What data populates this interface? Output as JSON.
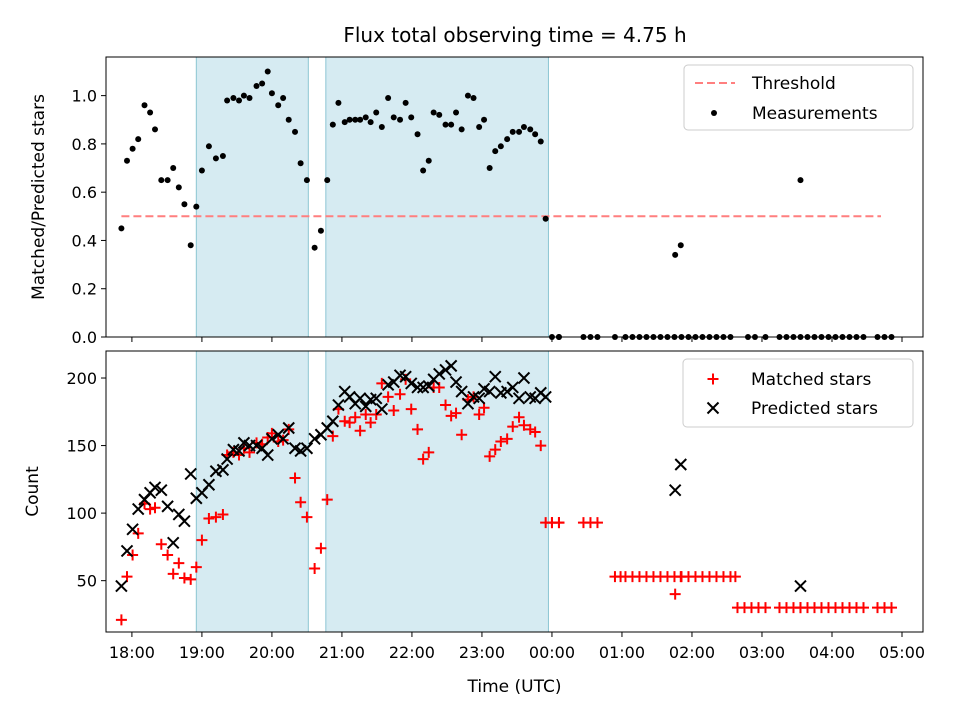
{
  "figure_title": "Flux total observing time = 4.75 h",
  "colors": {
    "threshold": "#ff7f7f",
    "measurement": "#000000",
    "matched": "#ff0000",
    "predicted": "#000000",
    "span": "#add8e6"
  },
  "chart_data": [
    {
      "type": "scatter",
      "title": "Flux total observing time = 4.75 h",
      "xlabel": "",
      "ylabel": "Matched/Predicted stars",
      "xlim": [
        -0.37,
        11.3
      ],
      "ylim": [
        0,
        1.16
      ],
      "yticks": [
        0.0,
        0.2,
        0.4,
        0.6,
        0.8,
        1.0
      ],
      "ytick_labels": [
        "0.0",
        "0.2",
        "0.4",
        "0.6",
        "0.8",
        "1.0"
      ],
      "legend": {
        "position": "top-right",
        "entries": [
          "Threshold",
          "Measurements"
        ]
      },
      "spans": [
        [
          0.92,
          2.52
        ],
        [
          2.77,
          5.95
        ]
      ],
      "threshold": {
        "name": "Threshold",
        "y": 0.5,
        "x": [
          -0.15,
          10.7
        ]
      },
      "series": [
        {
          "name": "Measurements",
          "x": [
            -0.15,
            -0.07,
            0.01,
            0.09,
            0.18,
            0.26,
            0.33,
            0.42,
            0.51,
            0.59,
            0.67,
            0.75,
            0.84,
            0.92,
            1.0,
            1.1,
            1.2,
            1.3,
            1.36,
            1.45,
            1.53,
            1.6,
            1.68,
            1.78,
            1.86,
            1.94,
            2.0,
            2.09,
            2.16,
            2.24,
            2.33,
            2.41,
            2.5,
            2.61,
            2.7,
            2.79,
            2.87,
            2.95,
            3.04,
            3.11,
            3.19,
            3.26,
            3.34,
            3.41,
            3.49,
            3.57,
            3.66,
            3.74,
            3.83,
            3.91,
            3.99,
            4.08,
            4.16,
            4.24,
            4.31,
            4.39,
            4.48,
            4.56,
            4.63,
            4.71,
            4.8,
            4.88,
            4.96,
            5.03,
            5.11,
            5.19,
            5.27,
            5.36,
            5.44,
            5.53,
            5.6,
            5.69,
            5.76,
            5.84,
            5.91,
            6.0,
            6.1,
            7.76,
            7.84,
            9.55
          ],
          "y": [
            0.45,
            0.73,
            0.78,
            0.82,
            0.96,
            0.93,
            0.86,
            0.65,
            0.65,
            0.7,
            0.62,
            0.55,
            0.38,
            0.54,
            0.69,
            0.79,
            0.74,
            0.75,
            0.98,
            0.99,
            0.98,
            1.0,
            0.99,
            1.04,
            1.05,
            1.1,
            1.01,
            0.96,
            0.99,
            0.9,
            0.85,
            0.72,
            0.65,
            0.37,
            0.44,
            0.65,
            0.88,
            0.97,
            0.89,
            0.9,
            0.9,
            0.9,
            0.91,
            0.89,
            0.93,
            0.87,
            0.99,
            0.91,
            0.9,
            0.97,
            0.91,
            0.84,
            0.69,
            0.73,
            0.93,
            0.92,
            0.88,
            0.88,
            0.93,
            0.86,
            1.0,
            0.99,
            0.87,
            0.9,
            0.7,
            0.77,
            0.79,
            0.82,
            0.85,
            0.85,
            0.87,
            0.86,
            0.84,
            0.81,
            0.49,
            0.0,
            0.0,
            0.34,
            0.38,
            0.65
          ]
        }
      ]
    },
    {
      "type": "scatter",
      "title": "",
      "xlabel": "Time (UTC)",
      "ylabel": "Count",
      "xlim": [
        -0.37,
        11.3
      ],
      "ylim": [
        12,
        220
      ],
      "yticks": [
        50,
        100,
        150,
        200
      ],
      "ytick_labels": [
        "50",
        "100",
        "150",
        "200"
      ],
      "xticks": [
        0,
        1,
        2,
        3,
        4,
        5,
        6,
        7,
        8,
        9,
        10,
        11
      ],
      "xtick_labels": [
        "18:00",
        "19:00",
        "20:00",
        "21:00",
        "22:00",
        "23:00",
        "00:00",
        "01:00",
        "02:00",
        "03:00",
        "04:00",
        "05:00"
      ],
      "legend": {
        "position": "top-right",
        "entries": [
          "Matched stars",
          "Predicted stars"
        ]
      },
      "spans": [
        [
          0.92,
          2.52
        ],
        [
          2.77,
          5.95
        ]
      ],
      "series": [
        {
          "name": "Matched stars",
          "marker": "+",
          "x": [
            -0.15,
            -0.07,
            0.01,
            0.09,
            0.18,
            0.26,
            0.33,
            0.42,
            0.51,
            0.59,
            0.67,
            0.75,
            0.84,
            0.92,
            1.0,
            1.1,
            1.2,
            1.3,
            1.36,
            1.45,
            1.53,
            1.6,
            1.68,
            1.78,
            1.86,
            1.94,
            2.0,
            2.09,
            2.16,
            2.24,
            2.33,
            2.41,
            2.5,
            2.61,
            2.7,
            2.79,
            2.87,
            2.95,
            3.04,
            3.11,
            3.19,
            3.26,
            3.34,
            3.41,
            3.49,
            3.57,
            3.66,
            3.74,
            3.83,
            3.91,
            3.99,
            4.08,
            4.16,
            4.24,
            4.31,
            4.39,
            4.48,
            4.56,
            4.63,
            4.71,
            4.8,
            4.88,
            4.96,
            5.03,
            5.11,
            5.19,
            5.27,
            5.36,
            5.44,
            5.53,
            5.6,
            5.69,
            5.76,
            5.84,
            5.91,
            6.0,
            6.1,
            7.76,
            7.84,
            9.55
          ],
          "y": [
            21,
            53,
            69,
            85,
            107,
            103,
            104,
            77,
            69,
            55,
            63,
            52,
            51,
            60,
            80,
            96,
            97,
            99,
            143,
            145,
            143,
            148,
            145,
            152,
            151,
            156,
            159,
            153,
            154,
            162,
            126,
            108,
            97,
            59,
            74,
            110,
            157,
            177,
            168,
            167,
            171,
            161,
            173,
            167,
            173,
            196,
            186,
            176,
            188,
            199,
            177,
            162,
            140,
            145,
            193,
            193,
            180,
            172,
            174,
            158,
            184,
            186,
            173,
            178,
            142,
            147,
            153,
            155,
            164,
            171,
            165,
            162,
            160,
            150,
            93,
            93,
            93,
            40,
            53,
            30
          ]
        },
        {
          "name": "Predicted stars",
          "marker": "x",
          "x": [
            -0.15,
            -0.07,
            0.01,
            0.09,
            0.18,
            0.26,
            0.33,
            0.42,
            0.51,
            0.59,
            0.67,
            0.75,
            0.84,
            0.92,
            1.0,
            1.1,
            1.2,
            1.3,
            1.36,
            1.45,
            1.53,
            1.6,
            1.68,
            1.78,
            1.86,
            1.94,
            2.0,
            2.09,
            2.16,
            2.24,
            2.33,
            2.41,
            2.5,
            2.61,
            2.7,
            2.79,
            2.87,
            2.95,
            3.04,
            3.11,
            3.19,
            3.26,
            3.34,
            3.41,
            3.49,
            3.57,
            3.66,
            3.74,
            3.83,
            3.91,
            3.99,
            4.08,
            4.16,
            4.24,
            4.31,
            4.39,
            4.48,
            4.56,
            4.63,
            4.71,
            4.8,
            4.88,
            4.96,
            5.03,
            5.11,
            5.19,
            5.27,
            5.36,
            5.44,
            5.53,
            5.6,
            5.69,
            5.76,
            5.84,
            5.91,
            7.76,
            7.84,
            9.55
          ],
          "y": [
            46,
            72,
            88,
            103,
            110,
            115,
            119,
            117,
            105,
            78,
            99,
            94,
            129,
            111,
            115,
            121,
            131,
            132,
            140,
            147,
            146,
            152,
            150,
            150,
            148,
            143,
            155,
            158,
            155,
            163,
            148,
            146,
            148,
            155,
            158,
            163,
            168,
            180,
            190,
            186,
            181,
            185,
            179,
            184,
            185,
            177,
            195,
            197,
            202,
            201,
            196,
            193,
            193,
            194,
            199,
            203,
            206,
            209,
            197,
            190,
            181,
            186,
            185,
            192,
            190,
            201,
            189,
            190,
            193,
            185,
            200,
            186,
            185,
            189,
            186,
            117,
            136,
            46
          ]
        }
      ]
    }
  ],
  "zero_points": {
    "x": [
      6.1,
      6.45,
      6.55,
      6.65,
      6.9,
      7.05,
      7.15,
      7.25,
      7.35,
      7.45,
      7.55,
      7.65,
      7.75,
      7.85,
      7.95,
      8.05,
      8.15,
      8.25,
      8.35,
      8.45,
      8.55,
      8.8,
      8.9,
      9.05,
      9.25,
      9.35,
      9.45,
      9.55,
      9.65,
      9.75,
      9.85,
      9.95,
      10.05,
      10.15,
      10.25,
      10.35,
      10.45,
      10.65,
      10.75,
      10.85
    ]
  },
  "count_tail": {
    "matched_x": [
      6.0,
      6.1,
      6.45,
      6.55,
      6.65,
      6.9,
      6.98,
      7.05,
      7.15,
      7.25,
      7.35,
      7.45,
      7.55,
      7.65,
      7.75,
      7.85,
      7.95,
      8.05,
      8.15,
      8.25,
      8.35,
      8.45,
      8.55,
      8.62
    ],
    "matched_y": [
      93,
      93,
      93,
      93,
      93,
      53,
      53,
      53,
      53,
      53,
      53,
      53,
      53,
      53,
      53,
      53,
      53,
      53,
      53,
      53,
      53,
      53,
      53,
      53
    ],
    "low_x": [
      8.65,
      8.75,
      8.85,
      8.95,
      9.05,
      9.25,
      9.35,
      9.45,
      9.55,
      9.65,
      9.75,
      9.85,
      9.95,
      10.05,
      10.15,
      10.25,
      10.35,
      10.45,
      10.65,
      10.75,
      10.85
    ],
    "low_y": 30
  }
}
